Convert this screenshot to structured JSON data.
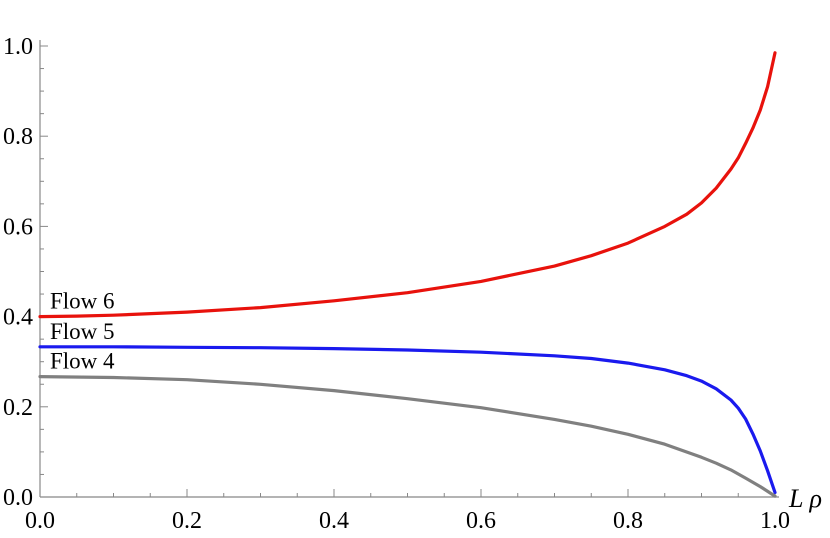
{
  "chart_data": {
    "type": "line",
    "title": "",
    "xlabel": "L ρ",
    "ylabel": "",
    "xlim": [
      0,
      1
    ],
    "ylim": [
      0,
      1
    ],
    "grid": false,
    "legend": "none",
    "x_ticks": [
      "0.0",
      "0.2",
      "0.4",
      "0.6",
      "0.8",
      "1.0"
    ],
    "y_ticks": [
      "0.0",
      "0.2",
      "0.4",
      "0.6",
      "0.8",
      "1.0"
    ],
    "series": [
      {
        "name": "Flow 6",
        "color": "#e8120c",
        "x": [
          0.0,
          0.05,
          0.1,
          0.2,
          0.3,
          0.4,
          0.5,
          0.6,
          0.7,
          0.75,
          0.8,
          0.85,
          0.88,
          0.9,
          0.92,
          0.94,
          0.95,
          0.96,
          0.97,
          0.98,
          0.99,
          1.0
        ],
        "y": [
          0.4,
          0.401,
          0.403,
          0.41,
          0.42,
          0.435,
          0.453,
          0.478,
          0.512,
          0.535,
          0.563,
          0.6,
          0.627,
          0.652,
          0.685,
          0.727,
          0.752,
          0.784,
          0.818,
          0.858,
          0.91,
          0.985
        ]
      },
      {
        "name": "Flow 5",
        "color": "#1a1aee",
        "x": [
          0.0,
          0.1,
          0.2,
          0.3,
          0.4,
          0.5,
          0.6,
          0.7,
          0.75,
          0.8,
          0.85,
          0.88,
          0.9,
          0.92,
          0.94,
          0.95,
          0.96,
          0.97,
          0.98,
          0.99,
          1.0
        ],
        "y": [
          0.333,
          0.333,
          0.332,
          0.331,
          0.329,
          0.326,
          0.321,
          0.313,
          0.307,
          0.297,
          0.282,
          0.269,
          0.257,
          0.24,
          0.215,
          0.197,
          0.173,
          0.14,
          0.102,
          0.058,
          0.01
        ]
      },
      {
        "name": "Flow 4",
        "color": "#808080",
        "x": [
          0.0,
          0.1,
          0.2,
          0.3,
          0.4,
          0.5,
          0.6,
          0.7,
          0.75,
          0.8,
          0.85,
          0.9,
          0.92,
          0.94,
          0.96,
          0.98,
          1.0
        ],
        "y": [
          0.267,
          0.265,
          0.26,
          0.25,
          0.236,
          0.218,
          0.198,
          0.172,
          0.157,
          0.139,
          0.117,
          0.088,
          0.075,
          0.06,
          0.042,
          0.023,
          0.002
        ]
      }
    ]
  }
}
